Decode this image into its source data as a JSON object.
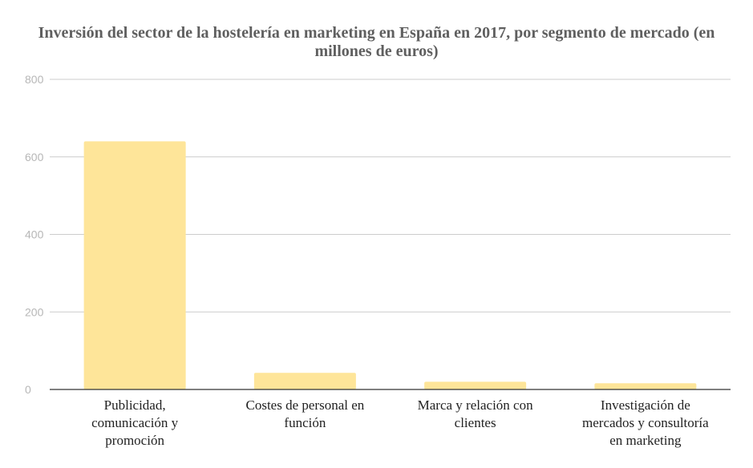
{
  "chart_data": {
    "type": "bar",
    "title": "Inversión del sector de la hostelería en marketing en España en 2017, por segmento de mercado (en millones de euros)",
    "xlabel": "",
    "ylabel": "",
    "categories": [
      [
        "Publicidad,",
        "comunicación y",
        "promoción"
      ],
      [
        "Costes de personal en",
        "función"
      ],
      [
        "Marca y relación con",
        "clientes"
      ],
      [
        "Investigación de",
        "mercados y consultoría",
        "en marketing"
      ]
    ],
    "values": [
      640,
      43,
      20,
      16
    ],
    "ylim": [
      0,
      800
    ],
    "yticks": [
      0,
      200,
      400,
      600,
      800
    ],
    "grid": true,
    "legend": "none",
    "colors": {
      "bar": "#fee599",
      "grid": "#cccccc",
      "axis": "#333333",
      "title": "#5f5f5f"
    }
  }
}
